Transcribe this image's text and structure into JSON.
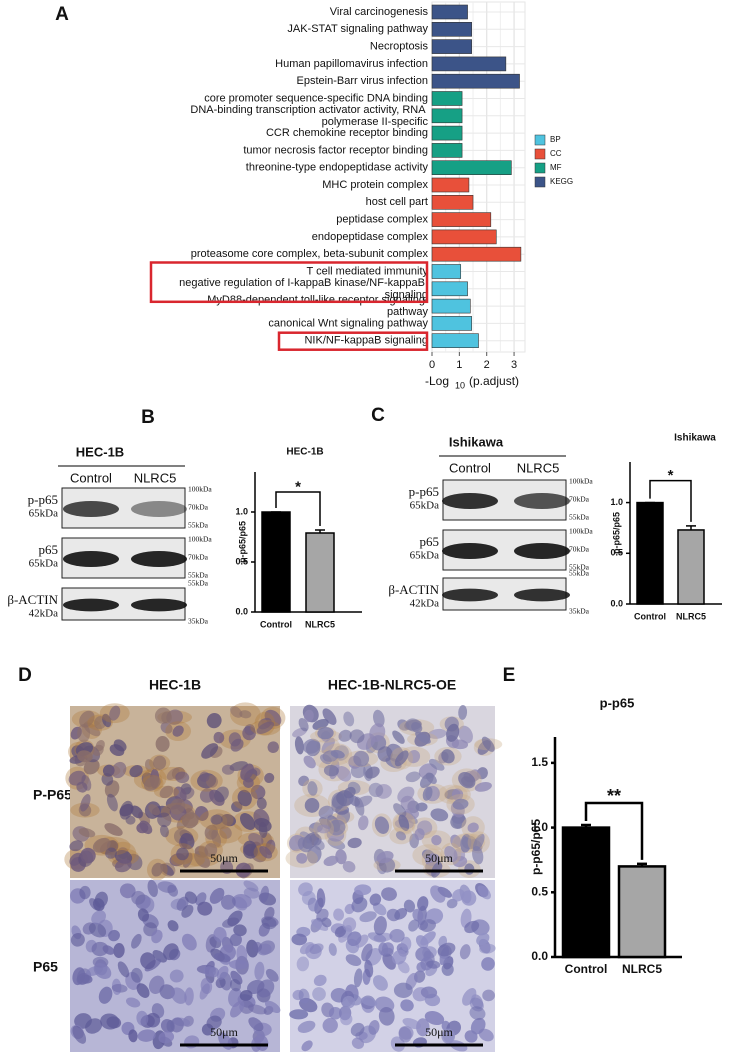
{
  "panel_labels": [
    "A",
    "B",
    "C",
    "D",
    "E"
  ],
  "blots": [
    {
      "cell_line": "HEC-1B",
      "lanes": [
        "Control",
        "NLRC5"
      ],
      "rows": [
        {
          "name": "p-p65",
          "size": "65kDa",
          "markers": [
            "100kDa",
            "70kDa",
            "55kDa"
          ]
        },
        {
          "name": "p65",
          "size": "65kDa",
          "markers": [
            "100kDa",
            "70kDa",
            "55kDa"
          ]
        },
        {
          "name": "β-ACTIN",
          "size": "42kDa",
          "markers": [
            "55kDa",
            "35kDa"
          ]
        }
      ]
    },
    {
      "cell_line": "Ishikawa",
      "lanes": [
        "Control",
        "NLRC5"
      ],
      "rows": [
        {
          "name": "p-p65",
          "size": "65kDa",
          "markers": [
            "100kDa",
            "70kDa",
            "55kDa"
          ]
        },
        {
          "name": "p65",
          "size": "65kDa",
          "markers": [
            "100kDa",
            "70kDa",
            "55kDa"
          ]
        },
        {
          "name": "β-ACTIN",
          "size": "42kDa",
          "markers": [
            "55kDa",
            "35kDa"
          ]
        }
      ]
    }
  ],
  "ihc": {
    "columns": [
      "HEC-1B",
      "HEC-1B-NLRC5-OE"
    ],
    "rows": [
      "P-P65",
      "P65"
    ],
    "scale_bar": "50μm"
  },
  "chart_data": [
    {
      "type": "bar",
      "orientation": "horizontal",
      "categories": [
        "Viral carcinogenesis",
        "JAK-STAT signaling pathway",
        "Necroptosis",
        "Human papillomavirus infection",
        "Epstein-Barr virus infection",
        "core promoter sequence-specific DNA binding",
        "DNA-binding transcription activator activity, RNA polymerase II-specific",
        "CCR chemokine receptor binding",
        "tumor necrosis factor receptor binding",
        "threonine-type endopeptidase activity",
        "MHC protein complex",
        "host cell part",
        "peptidase complex",
        "endopeptidase complex",
        "proteasome core complex, beta-subunit complex",
        "T cell mediated immunity",
        "negative regulation of I-kappaB kinase/NF-kappaB signaling",
        "MyD88-dependent toll-like receptor signaling pathway",
        "canonical Wnt signaling pathway",
        "NIK/NF-kappaB signaling"
      ],
      "series": [
        {
          "name": "BP",
          "color": "#4fc3df",
          "values": [
            null,
            null,
            null,
            null,
            null,
            null,
            null,
            null,
            null,
            null,
            null,
            null,
            null,
            null,
            null,
            1.05,
            1.3,
            1.4,
            1.45,
            1.7
          ]
        },
        {
          "name": "CC",
          "color": "#e8503a",
          "values": [
            null,
            null,
            null,
            null,
            null,
            null,
            null,
            null,
            null,
            null,
            1.35,
            1.5,
            2.15,
            2.35,
            3.25,
            null,
            null,
            null,
            null,
            null
          ]
        },
        {
          "name": "MF",
          "color": "#16a085",
          "values": [
            null,
            null,
            null,
            null,
            null,
            1.1,
            1.1,
            1.1,
            1.1,
            2.9,
            null,
            null,
            null,
            null,
            null,
            null,
            null,
            null,
            null,
            null
          ]
        },
        {
          "name": "KEGG",
          "color": "#3c5488",
          "values": [
            1.3,
            1.45,
            1.45,
            2.7,
            3.2,
            null,
            null,
            null,
            null,
            null,
            null,
            null,
            null,
            null,
            null,
            null,
            null,
            null,
            null,
            null
          ]
        }
      ],
      "xlim": [
        0,
        3.4
      ],
      "xticks": [
        0,
        1,
        2,
        3
      ],
      "grid": true,
      "xlabel": "-Log",
      "xlabel_subscript": "10",
      "xlabel_suffix": "(p.adjust)"
    },
    {
      "type": "bar",
      "title": "HEC-1B",
      "ylabel": "p-p65/p65",
      "categories": [
        "Control",
        "NLRC5"
      ],
      "values": [
        1.0,
        0.79
      ],
      "errors": [
        0.0,
        0.03
      ],
      "colors": [
        "#000000",
        "#a6a6a6"
      ],
      "ylim": [
        0,
        1.4
      ],
      "yticks": [
        {
          "value": 0,
          "label": "0.0"
        },
        {
          "value": 0.5,
          "label": "0.5"
        },
        {
          "value": 1,
          "label": "1.0"
        }
      ],
      "significance": "*"
    },
    {
      "type": "bar",
      "title": "Ishikawa",
      "ylabel": "p-p65/p65",
      "categories": [
        "Control",
        "NLRC5"
      ],
      "values": [
        1.0,
        0.73
      ],
      "errors": [
        0.0,
        0.04
      ],
      "colors": [
        "#000000",
        "#a6a6a6"
      ],
      "ylim": [
        0,
        1.4
      ],
      "yticks": [
        {
          "value": 0,
          "label": "0.0"
        },
        {
          "value": 0.5,
          "label": "0.5"
        },
        {
          "value": 1,
          "label": "1.0"
        }
      ],
      "significance": "*"
    },
    {
      "type": "bar",
      "title": "p-p65",
      "ylabel": "p-p65/p65",
      "categories": [
        "Control",
        "NLRC5"
      ],
      "values": [
        1.0,
        0.7
      ],
      "errors": [
        0.02,
        0.02
      ],
      "colors": [
        "#000000",
        "#a6a6a6"
      ],
      "ylim": [
        0,
        1.7
      ],
      "yticks": [
        {
          "value": 0,
          "label": "0.0"
        },
        {
          "value": 0.5,
          "label": "0.5"
        },
        {
          "value": 1,
          "label": "1.0"
        },
        {
          "value": 1.5,
          "label": "1.5"
        }
      ],
      "significance": "**"
    }
  ]
}
